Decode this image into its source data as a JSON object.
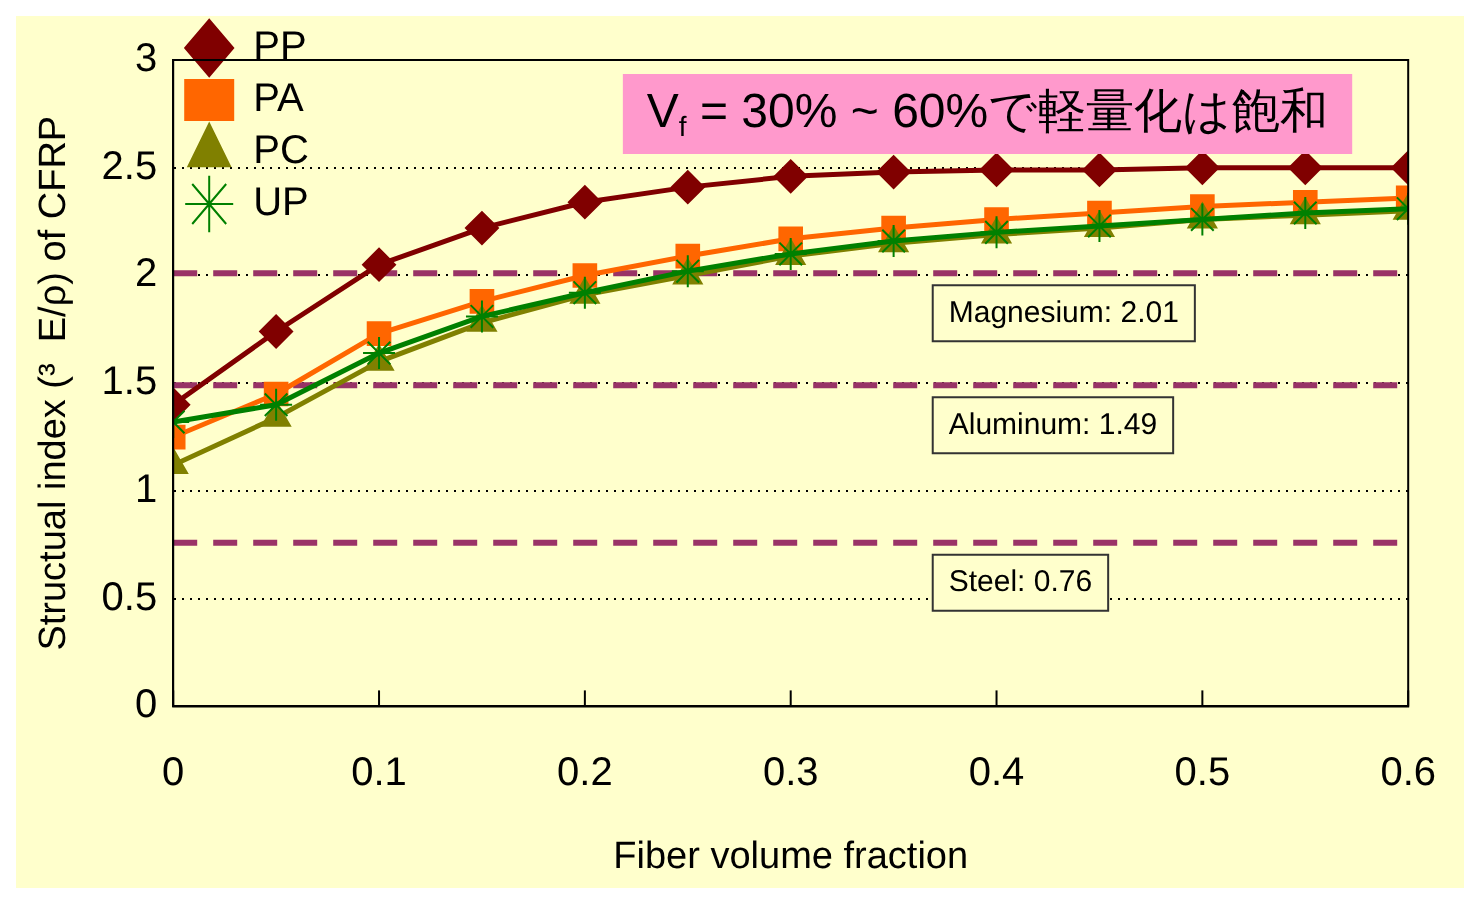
{
  "chart_data": {
    "type": "line",
    "xlabel": "Fiber volume fraction",
    "ylabel": "Structual index (³  E/ρ) of CFRP",
    "x": [
      0,
      0.05,
      0.1,
      0.15,
      0.2,
      0.25,
      0.3,
      0.35,
      0.4,
      0.45,
      0.5,
      0.55,
      0.6
    ],
    "series": [
      {
        "name": "PP",
        "color": "#800000",
        "marker": "diamond",
        "values": [
          1.4,
          1.74,
          2.05,
          2.22,
          2.34,
          2.41,
          2.46,
          2.48,
          2.49,
          2.49,
          2.5,
          2.5,
          2.5
        ]
      },
      {
        "name": "PA",
        "color": "#ff6600",
        "marker": "square",
        "values": [
          1.25,
          1.45,
          1.73,
          1.88,
          2.0,
          2.09,
          2.17,
          2.22,
          2.26,
          2.29,
          2.32,
          2.34,
          2.36
        ]
      },
      {
        "name": "PC",
        "color": "#808000",
        "marker": "triangle",
        "values": [
          1.12,
          1.34,
          1.6,
          1.78,
          1.91,
          2.0,
          2.09,
          2.15,
          2.19,
          2.22,
          2.26,
          2.28,
          2.3
        ]
      },
      {
        "name": "UP",
        "color": "#008000",
        "marker": "cross",
        "values": [
          1.32,
          1.4,
          1.64,
          1.81,
          1.92,
          2.02,
          2.1,
          2.16,
          2.2,
          2.23,
          2.26,
          2.29,
          2.31
        ]
      }
    ],
    "xlim": [
      0,
      0.6
    ],
    "xticks": [
      0,
      0.1,
      0.2,
      0.3,
      0.4,
      0.5,
      0.6
    ],
    "ylim": [
      0,
      3
    ],
    "yticks": [
      0,
      0.5,
      1,
      1.5,
      2,
      2.5,
      3
    ],
    "grid": "y",
    "legend": "top left",
    "line_style": "solid",
    "ref_lines": [
      {
        "axis": "y",
        "value": 2.01,
        "label": "Magnesium: 2.01",
        "color": "#993366",
        "line_style": "dashed"
      },
      {
        "axis": "y",
        "value": 1.49,
        "label": "Aluminum: 1.49",
        "color": "#983366",
        "line_style": "dashed"
      },
      {
        "axis": "y",
        "value": 0.76,
        "label": "Steel: 0.76",
        "color": "#9a3367",
        "line_style": "dashed"
      }
    ],
    "annotations": [
      "V$_{f}$ = 30% ~ 60%で軽量化は飽和"
    ]
  }
}
